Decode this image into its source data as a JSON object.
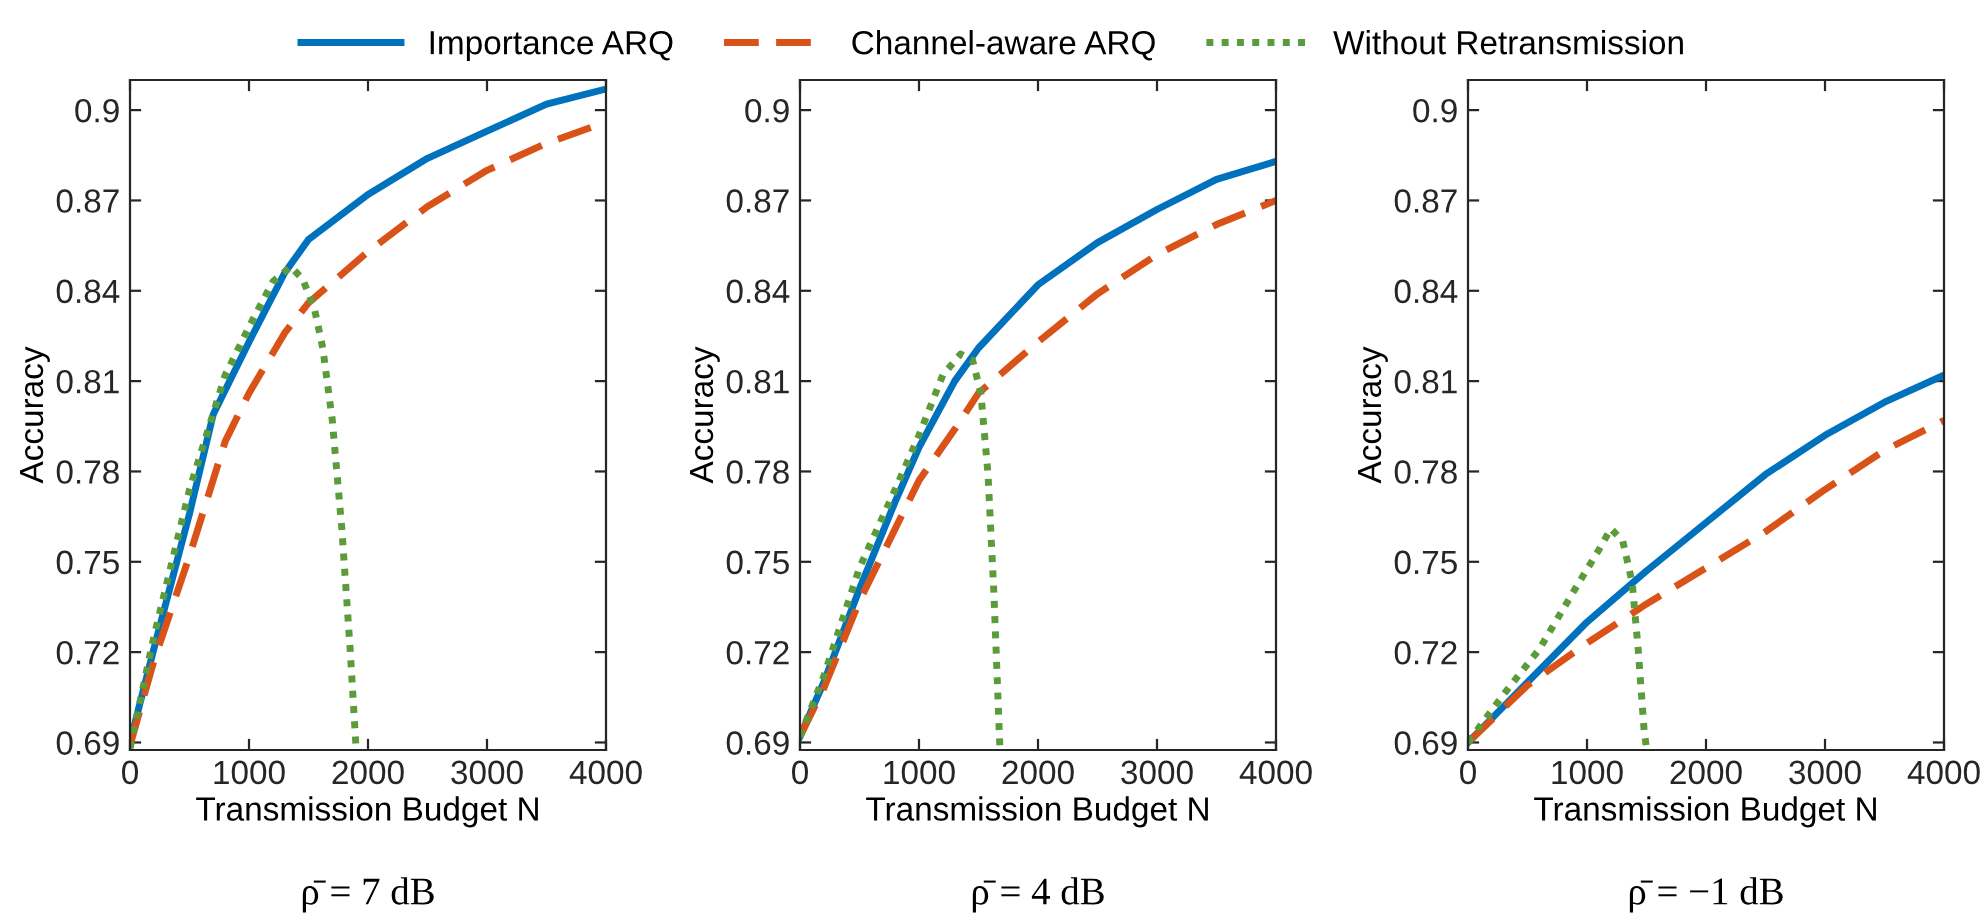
{
  "chart_data": [
    {
      "type": "line",
      "subtitle": "ρ̄ = 7 dB",
      "xlabel": "Transmission Budget N",
      "ylabel": "Accuracy",
      "xlim": [
        0,
        4000
      ],
      "xticks": [
        0,
        1000,
        2000,
        3000,
        4000
      ],
      "ylim": [
        0.6875,
        0.91
      ],
      "yticks": [
        0.69,
        0.72,
        0.75,
        0.78,
        0.81,
        0.84,
        0.87,
        0.9
      ],
      "grid": false,
      "legend": "top",
      "series": [
        {
          "name": "Importance ARQ",
          "color": "#0072bd",
          "line_style": "solid",
          "x": [
            0,
            200,
            500,
            700,
            1000,
            1300,
            1500,
            2000,
            2500,
            3000,
            3500,
            4000
          ],
          "values": [
            0.69,
            0.721,
            0.766,
            0.799,
            0.823,
            0.846,
            0.857,
            0.872,
            0.884,
            0.893,
            0.902,
            0.907
          ]
        },
        {
          "name": "Channel-aware ARQ",
          "color": "#d95319",
          "line_style": "dashed",
          "x": [
            0,
            200,
            500,
            800,
            1000,
            1300,
            1500,
            2000,
            2500,
            3000,
            3500,
            4000
          ],
          "values": [
            0.689,
            0.717,
            0.752,
            0.79,
            0.806,
            0.826,
            0.836,
            0.853,
            0.868,
            0.88,
            0.889,
            0.896
          ]
        },
        {
          "name": "Without Retransmission",
          "color": "#5b9b3a",
          "line_style": "dotted",
          "x": [
            0,
            200,
            500,
            800,
            1000,
            1200,
            1350,
            1450,
            1550,
            1620,
            1700,
            1780,
            1850,
            1900
          ],
          "values": [
            0.688,
            0.725,
            0.774,
            0.812,
            0.828,
            0.843,
            0.848,
            0.844,
            0.834,
            0.821,
            0.797,
            0.761,
            0.721,
            0.688
          ]
        }
      ]
    },
    {
      "type": "line",
      "subtitle": "ρ̄ = 4 dB",
      "xlabel": "Transmission Budget N",
      "ylabel": "Accuracy",
      "xlim": [
        0,
        4000
      ],
      "xticks": [
        0,
        1000,
        2000,
        3000,
        4000
      ],
      "ylim": [
        0.6875,
        0.91
      ],
      "yticks": [
        0.69,
        0.72,
        0.75,
        0.78,
        0.81,
        0.84,
        0.87,
        0.9
      ],
      "grid": false,
      "legend": false,
      "series": [
        {
          "color": "#0072bd",
          "line_style": "solid",
          "x": [
            0,
            200,
            500,
            800,
            1000,
            1300,
            1500,
            2000,
            2500,
            3000,
            3500,
            4000
          ],
          "values": [
            0.692,
            0.71,
            0.741,
            0.77,
            0.788,
            0.81,
            0.821,
            0.842,
            0.856,
            0.867,
            0.877,
            0.883
          ]
        },
        {
          "color": "#d95319",
          "line_style": "dashed",
          "x": [
            0,
            200,
            500,
            800,
            1000,
            1300,
            1500,
            2000,
            2500,
            3000,
            3500,
            4000
          ],
          "values": [
            0.692,
            0.708,
            0.737,
            0.761,
            0.777,
            0.794,
            0.806,
            0.823,
            0.839,
            0.852,
            0.862,
            0.87
          ]
        },
        {
          "color": "#5b9b3a",
          "line_style": "dotted",
          "x": [
            0,
            200,
            500,
            800,
            1000,
            1200,
            1350,
            1450,
            1520,
            1580,
            1630,
            1680
          ],
          "values": [
            0.692,
            0.712,
            0.748,
            0.774,
            0.792,
            0.812,
            0.819,
            0.817,
            0.806,
            0.779,
            0.739,
            0.688
          ]
        }
      ]
    },
    {
      "type": "line",
      "subtitle": "ρ̄ = −1 dB",
      "xlabel": "Transmission Budget N",
      "ylabel": "Accuracy",
      "xlim": [
        0,
        4000
      ],
      "xticks": [
        0,
        1000,
        2000,
        3000,
        4000
      ],
      "ylim": [
        0.6875,
        0.91
      ],
      "yticks": [
        0.69,
        0.72,
        0.75,
        0.78,
        0.81,
        0.84,
        0.87,
        0.9
      ],
      "grid": false,
      "legend": false,
      "series": [
        {
          "color": "#0072bd",
          "line_style": "solid",
          "x": [
            0,
            300,
            500,
            1000,
            1500,
            2000,
            2500,
            3000,
            3500,
            4000
          ],
          "values": [
            0.69,
            0.702,
            0.71,
            0.73,
            0.747,
            0.763,
            0.779,
            0.792,
            0.803,
            0.812
          ]
        },
        {
          "color": "#d95319",
          "line_style": "dashed",
          "x": [
            0,
            500,
            1000,
            1500,
            2000,
            2500,
            3000,
            3500,
            4000
          ],
          "values": [
            0.69,
            0.709,
            0.723,
            0.736,
            0.748,
            0.76,
            0.774,
            0.787,
            0.797
          ]
        },
        {
          "color": "#5b9b3a",
          "line_style": "dotted",
          "x": [
            0,
            300,
            600,
            900,
            1100,
            1200,
            1300,
            1380,
            1430,
            1480,
            1500
          ],
          "values": [
            0.69,
            0.706,
            0.721,
            0.741,
            0.754,
            0.761,
            0.757,
            0.743,
            0.721,
            0.694,
            0.688
          ]
        }
      ]
    }
  ]
}
